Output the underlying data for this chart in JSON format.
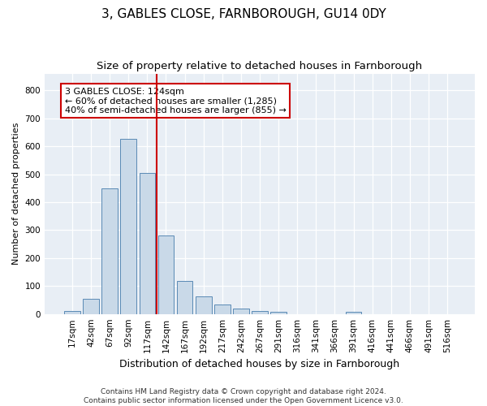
{
  "title": "3, GABLES CLOSE, FARNBOROUGH, GU14 0DY",
  "subtitle": "Size of property relative to detached houses in Farnborough",
  "xlabel": "Distribution of detached houses by size in Farnborough",
  "ylabel": "Number of detached properties",
  "bar_labels": [
    "17sqm",
    "42sqm",
    "67sqm",
    "92sqm",
    "117sqm",
    "142sqm",
    "167sqm",
    "192sqm",
    "217sqm",
    "242sqm",
    "267sqm",
    "291sqm",
    "316sqm",
    "341sqm",
    "366sqm",
    "391sqm",
    "416sqm",
    "441sqm",
    "466sqm",
    "491sqm",
    "516sqm"
  ],
  "bar_values": [
    12,
    55,
    450,
    625,
    505,
    280,
    118,
    62,
    35,
    20,
    10,
    9,
    0,
    0,
    0,
    8,
    0,
    0,
    0,
    0,
    0
  ],
  "bar_color": "#c9d9e8",
  "bar_edge_color": "#5a8ab5",
  "vline_x": 4.5,
  "vline_color": "#cc0000",
  "annotation_line1": "3 GABLES CLOSE: 124sqm",
  "annotation_line2": "← 60% of detached houses are smaller (1,285)",
  "annotation_line3": "40% of semi-detached houses are larger (855) →",
  "ylim": [
    0,
    860
  ],
  "yticks": [
    0,
    100,
    200,
    300,
    400,
    500,
    600,
    700,
    800
  ],
  "bg_color": "#e8eef5",
  "footer_text": "Contains HM Land Registry data © Crown copyright and database right 2024.\nContains public sector information licensed under the Open Government Licence v3.0.",
  "title_fontsize": 11,
  "subtitle_fontsize": 9.5,
  "xlabel_fontsize": 9,
  "ylabel_fontsize": 8,
  "tick_fontsize": 7.5,
  "annotation_fontsize": 8,
  "footer_fontsize": 6.5
}
